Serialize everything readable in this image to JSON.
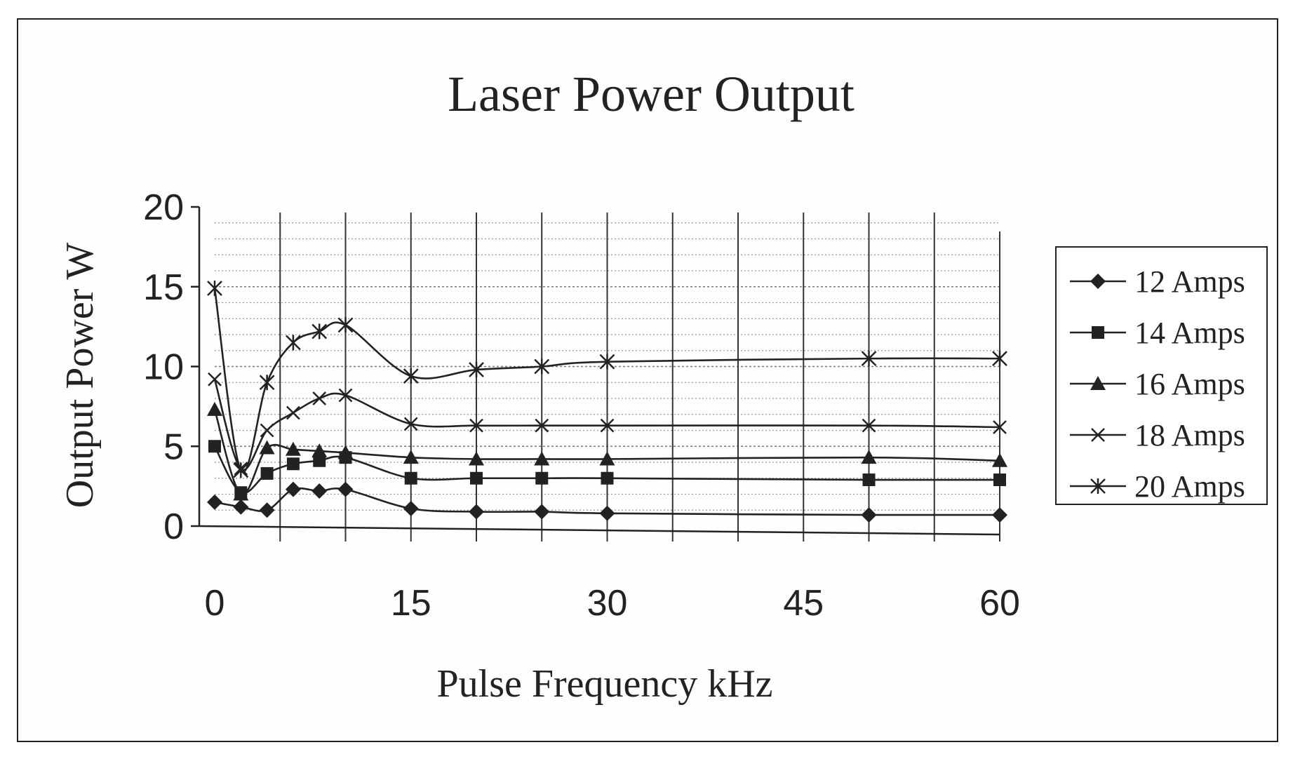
{
  "chart_data": {
    "type": "line",
    "title": "Laser Power Output",
    "xlabel": "Pulse Frequency kHz",
    "ylabel": "Output Power  W",
    "xlim": [
      0,
      60
    ],
    "ylim": [
      0,
      20
    ],
    "x_ticks": [
      0,
      15,
      30,
      45,
      60
    ],
    "y_ticks": [
      0,
      5,
      10,
      15,
      20
    ],
    "grid": true,
    "legend_position": "right",
    "line_color": "#222222",
    "series": [
      {
        "name": "12 Amps",
        "marker": "diamond",
        "x": [
          0,
          2,
          4,
          6,
          8,
          10,
          15,
          20,
          25,
          30,
          50,
          60
        ],
        "y": [
          1.5,
          1.2,
          1.0,
          2.3,
          2.2,
          2.3,
          1.1,
          0.9,
          0.9,
          0.8,
          0.7,
          0.7
        ]
      },
      {
        "name": "14 Amps",
        "marker": "square",
        "x": [
          0,
          2,
          4,
          6,
          8,
          10,
          15,
          20,
          25,
          30,
          50,
          60
        ],
        "y": [
          5.0,
          2.1,
          3.3,
          3.9,
          4.1,
          4.3,
          3.0,
          3.0,
          3.0,
          3.0,
          2.9,
          2.9
        ]
      },
      {
        "name": "16 Amps",
        "marker": "triangle",
        "x": [
          0,
          2,
          4,
          6,
          8,
          10,
          15,
          20,
          25,
          30,
          50,
          60
        ],
        "y": [
          7.3,
          2.0,
          4.9,
          4.8,
          4.7,
          4.6,
          4.3,
          4.2,
          4.2,
          4.2,
          4.3,
          4.1
        ]
      },
      {
        "name": "18 Amps",
        "marker": "x",
        "x": [
          0,
          2,
          4,
          6,
          8,
          10,
          15,
          20,
          25,
          30,
          50,
          60
        ],
        "y": [
          9.2,
          3.6,
          6.0,
          7.1,
          8.0,
          8.2,
          6.4,
          6.3,
          6.3,
          6.3,
          6.3,
          6.2
        ]
      },
      {
        "name": "20 Amps",
        "marker": "star",
        "x": [
          0,
          2,
          4,
          6,
          8,
          10,
          15,
          20,
          25,
          30,
          50,
          60
        ],
        "y": [
          14.9,
          3.5,
          9.0,
          11.5,
          12.2,
          12.6,
          9.4,
          9.8,
          10.0,
          10.3,
          10.5,
          10.5
        ]
      }
    ]
  }
}
